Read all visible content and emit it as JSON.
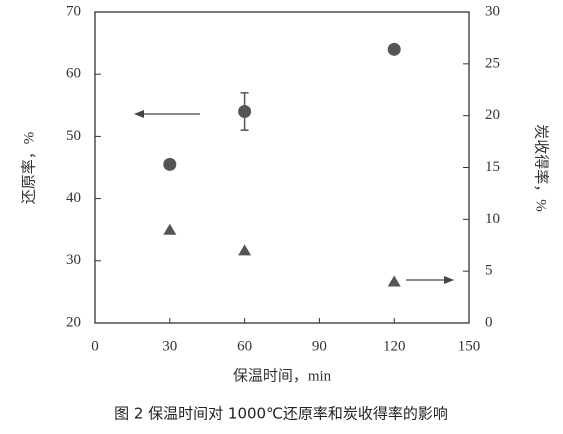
{
  "chart_data": {
    "type": "scatter",
    "caption": "图 2  保温时间对 1000℃还原率和炭收得率的影响",
    "x_label": "保温时间，min",
    "y_label": "还原率，%",
    "y2_label": "炭收得率，%",
    "x": [
      30,
      60,
      120
    ],
    "series": [
      {
        "marker": "circle",
        "axis": "y",
        "color": "#555555",
        "values": [
          45.5,
          54,
          64
        ],
        "errors": [
          null,
          3,
          null
        ]
      },
      {
        "marker": "triangle",
        "axis": "y2",
        "color": "#555555",
        "values": [
          9,
          7,
          4
        ]
      }
    ],
    "xlim": [
      0,
      150
    ],
    "xticks": [
      0,
      30,
      60,
      90,
      120,
      150
    ],
    "ylim": [
      20,
      70
    ],
    "yticks": [
      20,
      30,
      40,
      50,
      60,
      70
    ],
    "y2lim": [
      0,
      30
    ],
    "y2ticks": [
      0,
      5,
      10,
      15,
      20,
      25,
      30
    ]
  }
}
